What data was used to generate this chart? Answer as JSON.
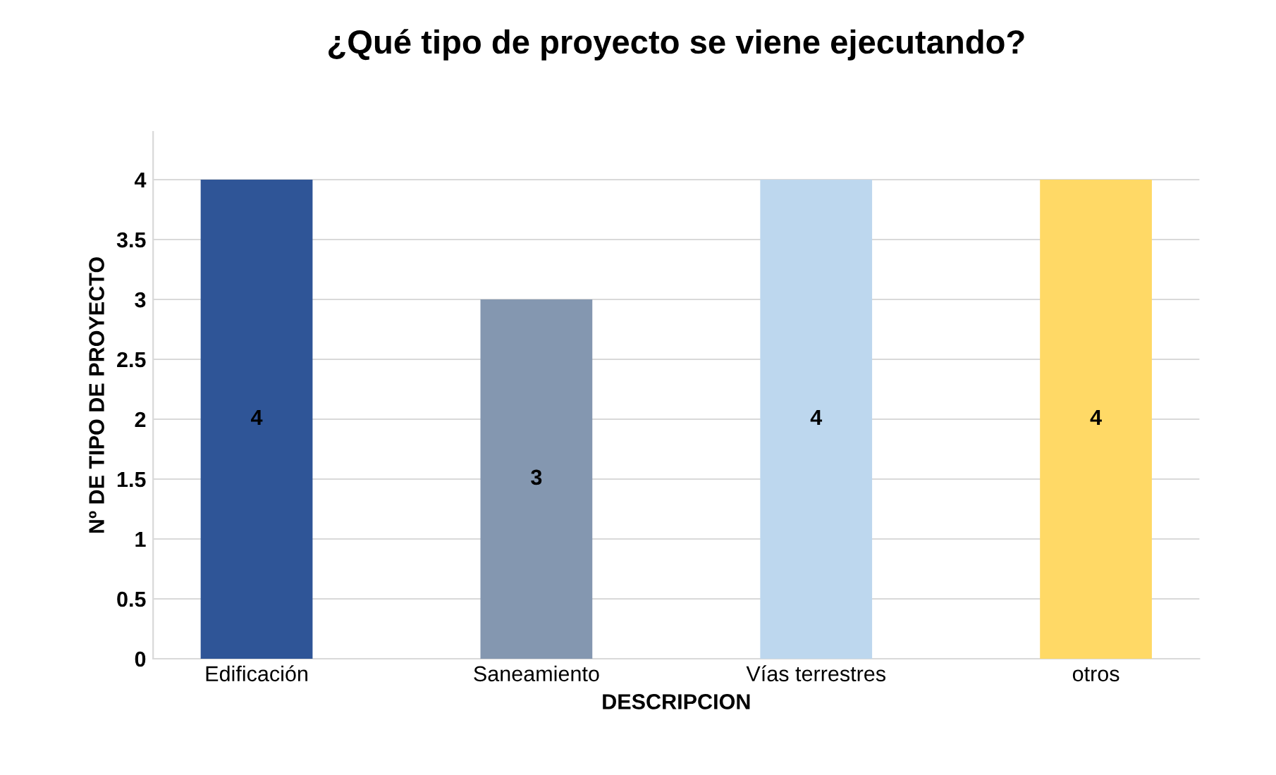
{
  "chart_data": {
    "type": "bar",
    "title": "¿Qué tipo de proyecto se viene ejecutando?",
    "xlabel": "DESCRIPCION",
    "ylabel": "Nº DE TIPO DE PROYECTO",
    "categories": [
      "Edificación",
      "Saneamiento",
      "Vías terrestres",
      "otros"
    ],
    "values": [
      4,
      3,
      4,
      4
    ],
    "colors": [
      "#2f5597",
      "#8497b0",
      "#bdd7ee",
      "#ffd966"
    ],
    "ylim": [
      0,
      4.4
    ],
    "yticks": [
      0,
      0.5,
      1,
      1.5,
      2,
      2.5,
      3,
      3.5,
      4
    ],
    "grid": "y",
    "data_labels": true
  }
}
